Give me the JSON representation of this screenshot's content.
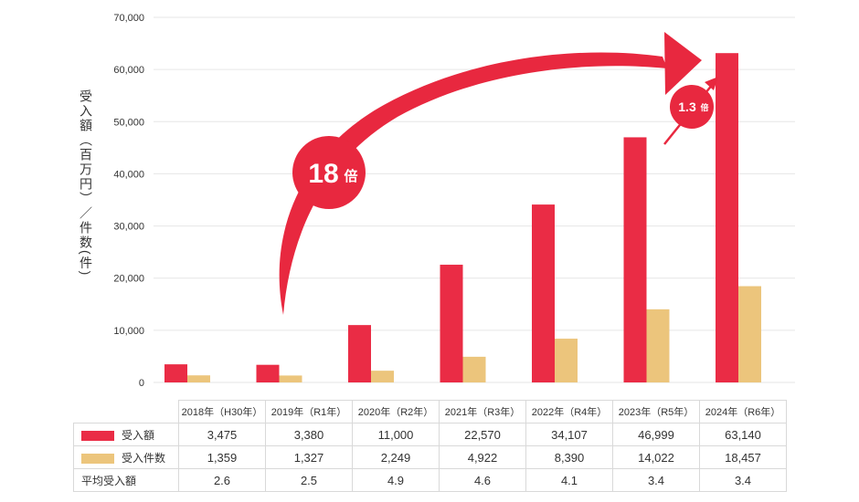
{
  "chart_data": {
    "type": "bar",
    "ylabel": "受入額（百万円）／件数(件)",
    "ylim": [
      0,
      70000
    ],
    "yticks": [
      "0",
      "10,000",
      "20,000",
      "30,000",
      "40,000",
      "50,000",
      "60,000",
      "70,000"
    ],
    "categories": [
      "2018年（H30年）",
      "2019年（R1年）",
      "2020年（R2年）",
      "2021年（R3年）",
      "2022年（R4年）",
      "2023年（R5年）",
      "2024年（R6年）"
    ],
    "series": [
      {
        "name": "受入額",
        "color": "#ea2c45",
        "values": [
          3475,
          3380,
          11000,
          22570,
          34107,
          46999,
          63140
        ]
      },
      {
        "name": "受入件数",
        "color": "#ecc57c",
        "values": [
          1359,
          1327,
          2249,
          4922,
          8390,
          14022,
          18457
        ]
      }
    ],
    "table": {
      "rows": [
        {
          "label": "受入額",
          "swatch": "#ea2c45",
          "cells": [
            "3,475",
            "3,380",
            "11,000",
            "22,570",
            "34,107",
            "46,999",
            "63,140"
          ]
        },
        {
          "label": "受入件数",
          "swatch": "#ecc57c",
          "cells": [
            "1,359",
            "1,327",
            "2,249",
            "4,922",
            "8,390",
            "14,022",
            "18,457"
          ]
        },
        {
          "label": "平均受入額",
          "swatch": "",
          "cells": [
            "2.6",
            "2.5",
            "4.9",
            "4.6",
            "4.1",
            "3.4",
            "3.4"
          ]
        }
      ]
    },
    "annotations": [
      {
        "text": "18",
        "suffix": "倍"
      },
      {
        "text": "1.3",
        "suffix": "倍"
      }
    ],
    "grid": true,
    "arrow_color": "#e8283f"
  }
}
